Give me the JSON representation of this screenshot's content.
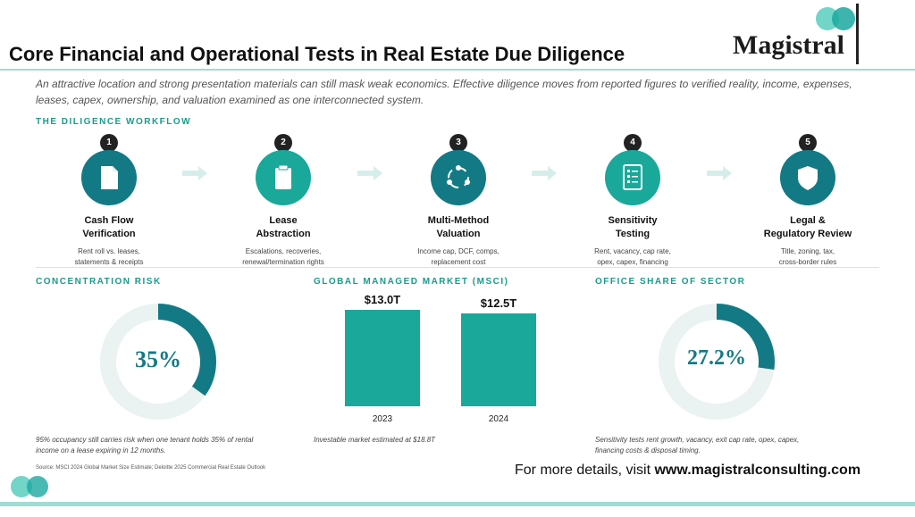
{
  "header": {
    "title": "Core Financial and Operational Tests in Real Estate Due Diligence",
    "logo_text": "Magistral"
  },
  "intro": "An attractive location and strong presentation materials can still mask weak economics. Effective diligence moves from reported figures to verified reality, income, expenses, leases, capex, ownership, and valuation examined as one interconnected system.",
  "workflow": {
    "label": "THE DILIGENCE WORKFLOW",
    "steps": [
      {
        "num": "1",
        "title_line1": "Cash Flow",
        "title_line2": "Verification",
        "desc_line1": "Rent roll vs. leases,",
        "desc_line2": "statements & receipts",
        "icon": "document-icon"
      },
      {
        "num": "2",
        "title_line1": "Lease",
        "title_line2": "Abstraction",
        "desc_line1": "Escalations, recoveries,",
        "desc_line2": "renewal/termination rights",
        "icon": "clipboard-icon"
      },
      {
        "num": "3",
        "title_line1": "Multi-Method",
        "title_line2": "Valuation",
        "desc_line1": "Income cap, DCF, comps,",
        "desc_line2": "replacement cost",
        "icon": "cycle-icon"
      },
      {
        "num": "4",
        "title_line1": "Sensitivity",
        "title_line2": "Testing",
        "desc_line1": "Rent, vacancy, cap rate,",
        "desc_line2": "opex, capex, financing",
        "icon": "checklist-icon"
      },
      {
        "num": "5",
        "title_line1": "Legal &",
        "title_line2": "Regulatory Review",
        "desc_line1": "Title, zoning, tax,",
        "desc_line2": "cross-border rules",
        "icon": "shield-icon"
      }
    ]
  },
  "concentration": {
    "label": "CONCENTRATION RISK",
    "value_label": "35%",
    "value": 35,
    "note_line1": "95% occupancy still carries risk when one tenant holds 35% of rental",
    "note_line2": "income on a lease expiring in 12 months."
  },
  "market": {
    "label": "GLOBAL MANAGED MARKET (MSCI)",
    "note": "Investable market estimated at $18.8T"
  },
  "chart_data": {
    "type": "bar",
    "categories": [
      "2023",
      "2024"
    ],
    "values": [
      13.0,
      12.5
    ],
    "value_labels": [
      "$13.0T",
      "$12.5T"
    ],
    "title": "GLOBAL MANAGED MARKET (MSCI)"
  },
  "office": {
    "label": "OFFICE SHARE OF SECTOR",
    "value_label": "27.2%",
    "value": 27.2,
    "note_line1": "Sensitivity tests rent growth, vacancy, exit cap rate, opex, capex,",
    "note_line2": "financing costs & disposal timing."
  },
  "footer": {
    "source": "Source: MSCI 2024 Global Market Size Estimate; Deloitte 2025 Commercial Real Estate Outlook",
    "link_prefix": "For more details, visit ",
    "link_url": "www.magistralconsulting.com"
  },
  "colors": {
    "dark_teal": "#137a85",
    "teal": "#1aa89a",
    "light_teal": "#9fdcd2",
    "ring_bg": "#eaf2f2"
  }
}
